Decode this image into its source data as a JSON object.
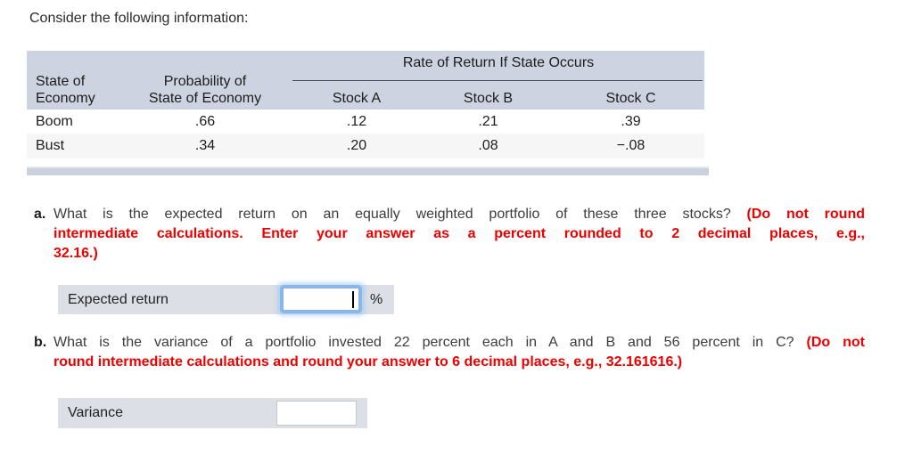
{
  "title": "Consider the following information:",
  "table": {
    "spanner": "Rate of Return If State Occurs",
    "headers": {
      "state_line1": "State of",
      "state_line2": "Economy",
      "prob_line1": "Probability of",
      "prob_line2": "State of Economy",
      "stock_cols": [
        "Stock A",
        "Stock B",
        "Stock C"
      ]
    },
    "rows": [
      {
        "state": "Boom",
        "prob": ".66",
        "a": ".12",
        "b": ".21",
        "c": ".39"
      },
      {
        "state": "Bust",
        "prob": ".34",
        "a": ".20",
        "b": ".08",
        "c": "−.08"
      }
    ]
  },
  "question_a": {
    "label": "a.",
    "lines": [
      {
        "normal": "What is the expected return on an equally weighted portfolio of these three stocks? ",
        "red": "(Do not round"
      },
      {
        "red": "intermediate calculations. Enter your answer as a percent rounded to 2 decimal places, e.g.,"
      },
      {
        "red": "32.16.)"
      }
    ]
  },
  "question_b": {
    "label": "b.",
    "lines": [
      {
        "normal": "What is the variance of a portfolio invested 22 percent each in A and B and 56 percent in C? ",
        "red": "(Do not"
      },
      {
        "red": "round intermediate calculations and round your answer to 6 decimal places, e.g., 32.161616.)"
      }
    ]
  },
  "answers": {
    "expected_return": {
      "label": "Expected return",
      "value": "",
      "unit": "%"
    },
    "variance": {
      "label": "Variance",
      "value": ""
    }
  },
  "colors": {
    "table_header_band": "#cdd3e0",
    "table_alt_row": "#f6f6f7",
    "scroll_strip": "#cbd2de",
    "answer_bar": "#dcdfe5",
    "instruction_red": "#ee0000",
    "focus_ring_blue": "#86b8ee"
  }
}
